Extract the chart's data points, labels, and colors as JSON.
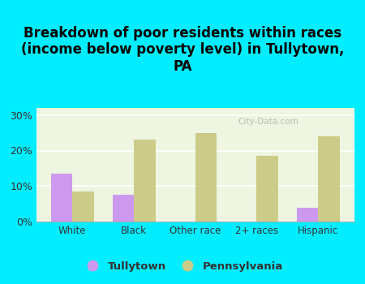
{
  "categories": [
    "White",
    "Black",
    "Other race",
    "2+ races",
    "Hispanic"
  ],
  "tullytown": [
    13.5,
    7.5,
    0,
    0,
    4.0
  ],
  "pennsylvania": [
    8.5,
    23.0,
    25.0,
    18.5,
    24.0
  ],
  "tullytown_color": "#cc99ee",
  "pennsylvania_color": "#cccc88",
  "title": "Breakdown of poor residents within races\n(income below poverty level) in Tullytown,\nPA",
  "yticks": [
    0,
    10,
    20,
    30
  ],
  "ytick_labels": [
    "0%",
    "10%",
    "20%",
    "30%"
  ],
  "ylim": [
    0,
    32
  ],
  "background_color": "#00eeff",
  "plot_bg_color": "#eef5e0",
  "title_fontsize": 12,
  "legend_tullytown": "Tullytown",
  "legend_pennsylvania": "Pennsylvania",
  "watermark": "City-Data.com"
}
